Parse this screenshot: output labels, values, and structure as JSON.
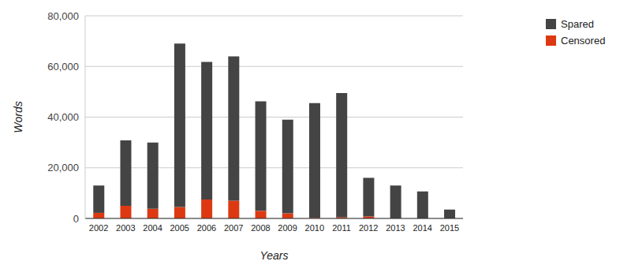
{
  "chart_data": {
    "type": "bar",
    "stacked": true,
    "x_label": "Years",
    "y_label": "Words",
    "categories": [
      "2002",
      "2003",
      "2004",
      "2005",
      "2006",
      "2007",
      "2008",
      "2009",
      "2010",
      "2011",
      "2012",
      "2013",
      "2014",
      "2015"
    ],
    "series": [
      {
        "name": "Spared",
        "color": "#444444",
        "values": [
          10800,
          25800,
          26200,
          64500,
          54300,
          57000,
          43200,
          37000,
          45300,
          49000,
          15200,
          13000,
          10700,
          3500
        ]
      },
      {
        "name": "Censored",
        "color": "#dc3912",
        "values": [
          2200,
          5000,
          3800,
          4500,
          7500,
          7000,
          3000,
          2000,
          200,
          500,
          800,
          0,
          0,
          0
        ]
      }
    ],
    "ylim": [
      0,
      80000
    ],
    "yticks": [
      0,
      {
        "value": 20000,
        "label": "20,000"
      },
      {
        "value": 40000,
        "label": "40,000"
      },
      {
        "value": 60000,
        "label": "60,000"
      },
      {
        "value": 80000,
        "label": "80,000"
      }
    ],
    "grid": true,
    "legend": "top-right"
  }
}
